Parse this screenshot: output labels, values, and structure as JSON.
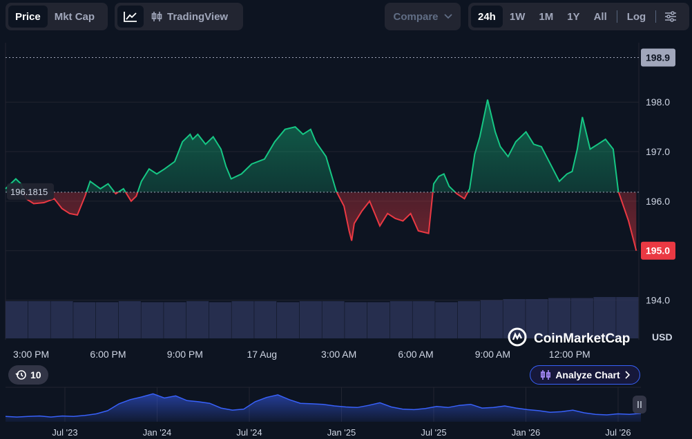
{
  "toolbar": {
    "price_label": "Price",
    "mktcap_label": "Mkt Cap",
    "tradingview_label": "TradingView",
    "compare_label": "Compare",
    "ranges": [
      "24h",
      "1W",
      "1M",
      "1Y",
      "All"
    ],
    "active_range": "24h",
    "log_label": "Log"
  },
  "watermark": "CoinMarketCap",
  "history_badge": "10",
  "analyze_label": "Analyze Chart",
  "colors": {
    "up": "#16c784",
    "down": "#ea3943",
    "accent": "#3861fb",
    "background": "#0d1421"
  },
  "chart_data": {
    "type": "line",
    "reference_value": 196.1815,
    "reference_label": "196.1815",
    "current_value": 195.0,
    "current_label": "195.0",
    "high_value": 198.9,
    "high_label": "198.9",
    "ylim": [
      193.2,
      199.2
    ],
    "y_ticks": [
      194.0,
      195.0,
      196.0,
      197.0,
      198.0
    ],
    "y_tick_labels": [
      "194.0",
      "195.0",
      "196.0",
      "197.0",
      "198.0"
    ],
    "currency_label": "USD",
    "x_tick_labels": [
      "3:00 PM",
      "6:00 PM",
      "9:00 PM",
      "17 Aug",
      "3:00 AM",
      "6:00 AM",
      "9:00 AM",
      "12:00 PM"
    ],
    "x_tick_hours": [
      1.0,
      4.0,
      7.0,
      10.0,
      13.0,
      16.0,
      19.0,
      22.0
    ],
    "xlim": [
      0,
      24.7
    ],
    "x_hours": [
      0.0,
      0.4,
      0.6,
      0.8,
      1.1,
      1.5,
      1.9,
      2.2,
      2.5,
      2.8,
      3.1,
      3.3,
      3.7,
      4.0,
      4.3,
      4.6,
      4.9,
      5.1,
      5.3,
      5.6,
      5.9,
      6.2,
      6.6,
      6.9,
      7.2,
      7.3,
      7.5,
      7.8,
      8.1,
      8.4,
      8.6,
      8.8,
      9.2,
      9.6,
      10.1,
      10.5,
      10.9,
      11.3,
      11.6,
      11.9,
      12.1,
      12.5,
      12.9,
      13.2,
      13.4,
      13.5,
      13.6,
      13.9,
      14.2,
      14.4,
      14.6,
      14.9,
      15.2,
      15.5,
      15.8,
      16.1,
      16.5,
      16.7,
      16.9,
      17.1,
      17.3,
      17.6,
      17.9,
      18.1,
      18.3,
      18.5,
      18.8,
      19.1,
      19.3,
      19.6,
      19.9,
      20.3,
      20.6,
      20.9,
      21.3,
      21.6,
      21.9,
      22.1,
      22.3,
      22.5,
      22.8,
      23.1,
      23.4,
      23.7,
      23.9,
      24.1,
      24.3,
      24.45,
      24.6
    ],
    "values": [
      196.25,
      196.45,
      196.35,
      196.05,
      195.95,
      195.97,
      196.05,
      195.85,
      195.75,
      195.72,
      196.1,
      196.4,
      196.25,
      196.35,
      196.15,
      196.25,
      196.0,
      196.1,
      196.4,
      196.65,
      196.55,
      196.65,
      196.8,
      197.2,
      197.35,
      197.25,
      197.35,
      197.15,
      197.3,
      197.05,
      196.7,
      196.45,
      196.55,
      196.75,
      196.85,
      197.2,
      197.45,
      197.5,
      197.35,
      197.45,
      197.2,
      196.9,
      196.2,
      195.9,
      195.4,
      195.2,
      195.55,
      195.8,
      196.0,
      195.75,
      195.5,
      195.75,
      195.65,
      195.6,
      195.75,
      195.4,
      195.35,
      196.35,
      196.5,
      196.55,
      196.3,
      196.15,
      196.05,
      196.25,
      196.95,
      197.3,
      198.05,
      197.4,
      197.1,
      196.9,
      197.2,
      197.4,
      197.15,
      197.1,
      196.7,
      196.4,
      196.55,
      196.6,
      197.05,
      197.7,
      197.05,
      197.15,
      197.25,
      197.05,
      196.2,
      195.9,
      195.6,
      195.3,
      195.0
    ]
  },
  "volume_data": {
    "values": [
      0.36,
      0.36,
      0.36,
      0.35,
      0.35,
      0.36,
      0.35,
      0.35,
      0.36,
      0.35,
      0.36,
      0.36,
      0.35,
      0.36,
      0.36,
      0.35,
      0.35,
      0.36,
      0.36,
      0.35,
      0.36,
      0.37,
      0.38,
      0.38,
      0.39,
      0.39,
      0.4,
      0.4
    ]
  },
  "navigator": {
    "labels": [
      "Jul '23",
      "Jan '24",
      "Jul '24",
      "Jan '25",
      "Jul '25",
      "Jan '26",
      "Jul '26"
    ],
    "values": [
      190,
      189,
      190,
      191,
      189,
      191,
      190,
      192,
      195,
      201,
      214,
      222,
      227,
      233,
      225,
      229,
      220,
      218,
      215,
      206,
      202,
      204,
      218,
      226,
      231,
      222,
      215,
      214,
      213,
      210,
      208,
      207,
      211,
      216,
      208,
      204,
      203,
      205,
      209,
      207,
      211,
      213,
      206,
      207,
      210,
      206,
      203,
      201,
      198,
      199,
      202,
      197,
      194,
      193,
      195,
      194,
      196
    ]
  }
}
